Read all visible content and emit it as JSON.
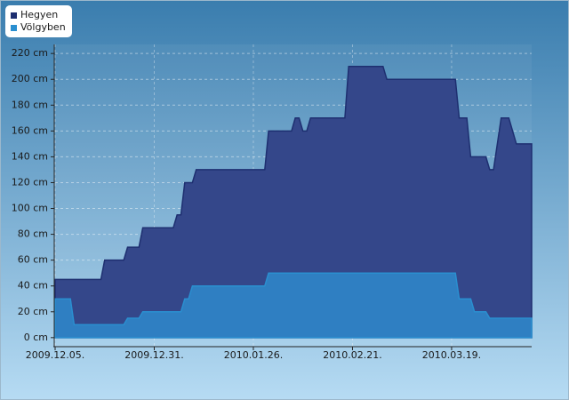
{
  "chart_data": {
    "type": "area",
    "series": [
      {
        "name": "Hegyen",
        "color": "#1e2f70",
        "fill": "#34478a",
        "x": [
          "2009-12-05",
          "2009-12-17",
          "2009-12-18",
          "2009-12-23",
          "2009-12-24",
          "2009-12-27",
          "2009-12-28",
          "2010-01-05",
          "2010-01-06",
          "2010-01-07",
          "2010-01-08",
          "2010-01-10",
          "2010-01-11",
          "2010-01-29",
          "2010-01-30",
          "2010-02-05",
          "2010-02-06",
          "2010-02-07",
          "2010-02-08",
          "2010-02-09",
          "2010-02-10",
          "2010-02-19",
          "2010-02-20",
          "2010-03-01",
          "2010-03-02",
          "2010-03-20",
          "2010-03-21",
          "2010-03-23",
          "2010-03-24",
          "2010-03-28",
          "2010-03-29",
          "2010-03-30",
          "2010-04-01",
          "2010-04-03",
          "2010-04-05",
          "2010-04-09"
        ],
        "values": [
          45,
          45,
          60,
          60,
          70,
          70,
          85,
          85,
          95,
          95,
          120,
          120,
          130,
          130,
          160,
          160,
          170,
          170,
          160,
          160,
          170,
          170,
          210,
          210,
          200,
          200,
          170,
          170,
          140,
          140,
          130,
          130,
          170,
          170,
          150,
          150
        ]
      },
      {
        "name": "Völgyben",
        "color": "#2a8fd0",
        "fill": "#2f7fc2",
        "x": [
          "2009-12-05",
          "2009-12-09",
          "2009-12-10",
          "2009-12-23",
          "2009-12-24",
          "2009-12-27",
          "2009-12-28",
          "2010-01-07",
          "2010-01-08",
          "2010-01-09",
          "2010-01-10",
          "2010-01-29",
          "2010-01-30",
          "2010-03-20",
          "2010-03-21",
          "2010-03-24",
          "2010-03-25",
          "2010-03-28",
          "2010-03-29",
          "2010-04-09"
        ],
        "values": [
          30,
          30,
          10,
          10,
          15,
          15,
          20,
          20,
          30,
          30,
          40,
          40,
          50,
          50,
          30,
          30,
          20,
          20,
          15,
          15
        ]
      }
    ],
    "xlim": [
      "2009-12-05",
      "2010-04-09"
    ],
    "xticks": [
      {
        "value": "2009-12-05",
        "label": "2009.12.05."
      },
      {
        "value": "2009-12-31",
        "label": "2009.12.31."
      },
      {
        "value": "2010-01-26",
        "label": "2010.01.26."
      },
      {
        "value": "2010-02-21",
        "label": "2010.02.21."
      },
      {
        "value": "2010-03-19",
        "label": "2010.03.19."
      }
    ],
    "ylim": [
      -7,
      227
    ],
    "yticks": [
      {
        "value": 0,
        "label": "0 cm"
      },
      {
        "value": 20,
        "label": "20 cm"
      },
      {
        "value": 40,
        "label": "40 cm"
      },
      {
        "value": 60,
        "label": "60 cm"
      },
      {
        "value": 80,
        "label": "80 cm"
      },
      {
        "value": 100,
        "label": "100 cm"
      },
      {
        "value": 120,
        "label": "120 cm"
      },
      {
        "value": 140,
        "label": "140 cm"
      },
      {
        "value": 160,
        "label": "160 cm"
      },
      {
        "value": 180,
        "label": "180 cm"
      },
      {
        "value": 200,
        "label": "200 cm"
      },
      {
        "value": 220,
        "label": "220 cm"
      }
    ],
    "grid": true
  }
}
